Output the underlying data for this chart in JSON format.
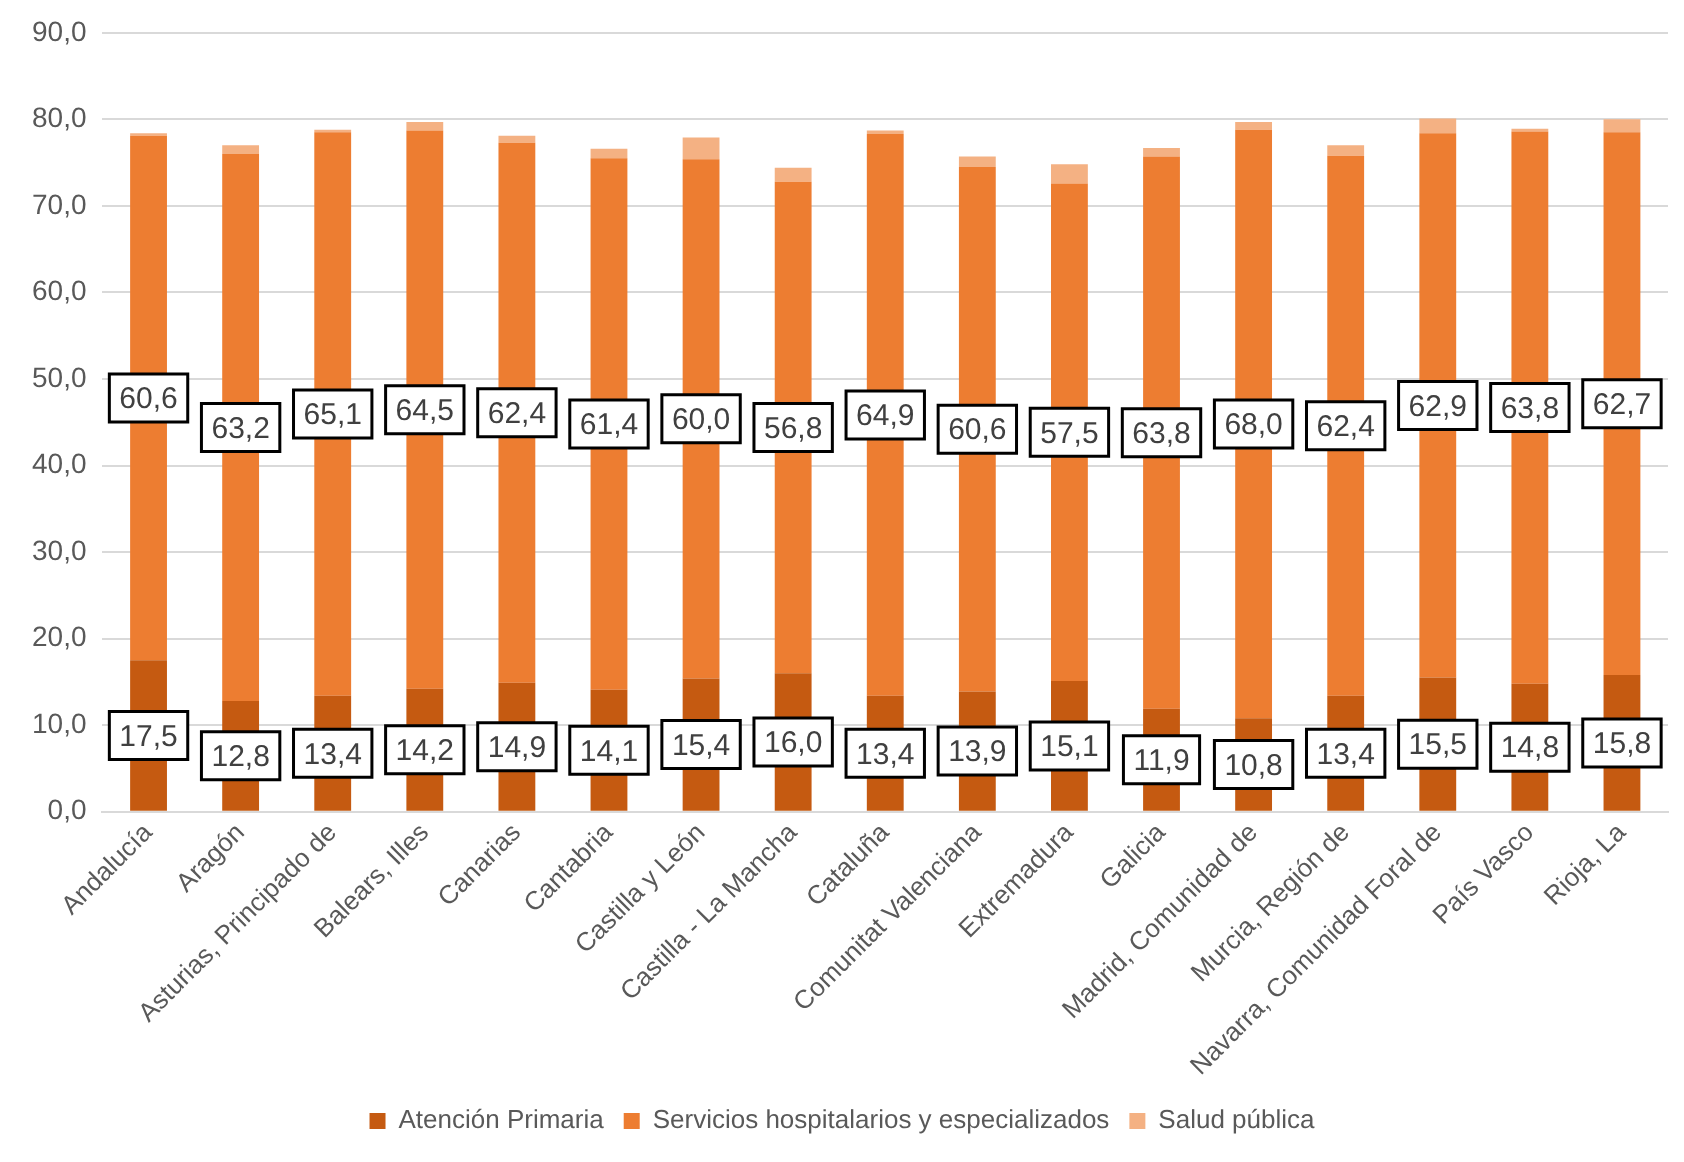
{
  "chart_data": {
    "type": "bar",
    "stacked": true,
    "categories": [
      "Andalucía",
      "Aragón",
      "Asturias, Principado de",
      "Balears, Illes",
      "Canarias",
      "Cantabria",
      "Castilla y León",
      "Castilla - La Mancha",
      "Cataluña",
      "Comunitat Valenciana",
      "Extremadura",
      "Galicia",
      "Madrid, Comunidad de",
      "Murcia, Región de",
      "Navarra, Comunidad Foral de",
      "País Vasco",
      "Rioja, La"
    ],
    "series": [
      {
        "name": "Atención Primaria",
        "color": "#c55a11",
        "values": [
          17.5,
          12.8,
          13.4,
          14.2,
          14.9,
          14.1,
          15.4,
          16.0,
          13.4,
          13.9,
          15.1,
          11.9,
          10.8,
          13.4,
          15.5,
          14.8,
          15.8
        ],
        "value_labels": [
          "17,5",
          "12,8",
          "13,4",
          "14,2",
          "14,9",
          "14,1",
          "15,4",
          "16,0",
          "13,4",
          "13,9",
          "15,1",
          "11,9",
          "10,8",
          "13,4",
          "15,5",
          "14,8",
          "15,8"
        ]
      },
      {
        "name": "Servicios hospitalarios y especializados",
        "color": "#ed7d31",
        "values": [
          60.6,
          63.2,
          65.1,
          64.5,
          62.4,
          61.4,
          60.0,
          56.8,
          64.9,
          60.6,
          57.5,
          63.8,
          68.0,
          62.4,
          62.9,
          63.8,
          62.7
        ],
        "value_labels": [
          "60,6",
          "63,2",
          "65,1",
          "64,5",
          "62,4",
          "61,4",
          "60,0",
          "56,8",
          "64,9",
          "60,6",
          "57,5",
          "63,8",
          "68,0",
          "62,4",
          "62,9",
          "63,8",
          "62,7"
        ]
      },
      {
        "name": "Salud pública",
        "color": "#f4b183",
        "values": [
          0.3,
          1.0,
          0.3,
          1.0,
          0.8,
          1.1,
          2.5,
          1.6,
          0.4,
          1.2,
          2.2,
          1.0,
          0.9,
          1.2,
          1.7,
          0.3,
          1.5
        ]
      }
    ],
    "ylim": [
      0,
      90
    ],
    "yticks": [
      {
        "value": 0,
        "label": "0,0"
      },
      {
        "value": 10,
        "label": "10,0"
      },
      {
        "value": 20,
        "label": "20,0"
      },
      {
        "value": 30,
        "label": "30,0"
      },
      {
        "value": 40,
        "label": "40,0"
      },
      {
        "value": 50,
        "label": "50,0"
      },
      {
        "value": 60,
        "label": "60,0"
      },
      {
        "value": 70,
        "label": "70,0"
      },
      {
        "value": 80,
        "label": "80,0"
      },
      {
        "value": 90,
        "label": "90,0"
      }
    ],
    "grid": "y",
    "legend": "bottom"
  }
}
